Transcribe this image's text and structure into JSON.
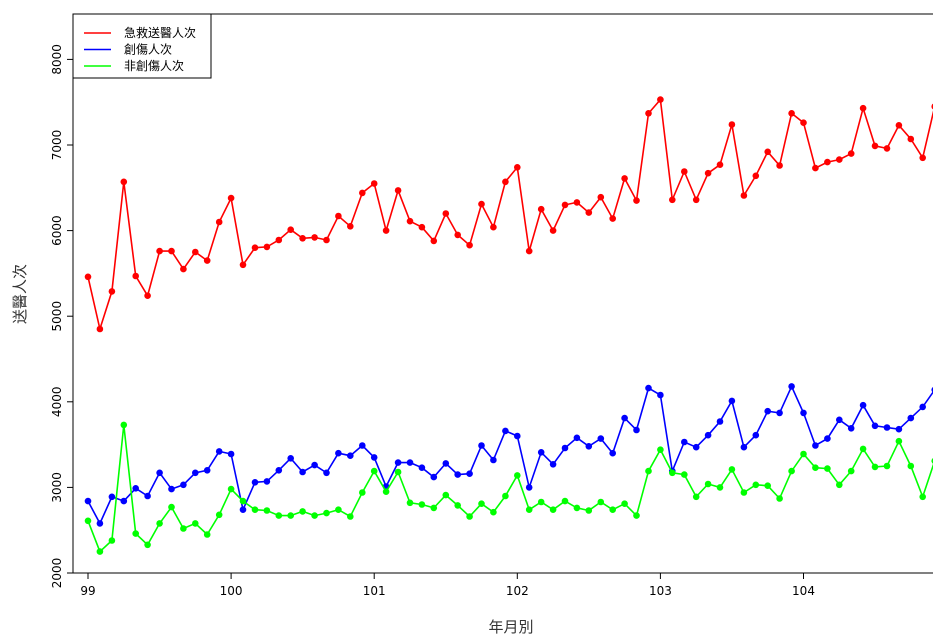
{
  "chart_data": {
    "type": "line",
    "xlabel": "年月別",
    "ylabel": "送醫人次",
    "xlim": [
      99,
      104.91
    ],
    "ylim": [
      2000,
      8500
    ],
    "x_ticks": [
      99,
      100,
      101,
      102,
      103,
      104
    ],
    "x_tick_labels": [
      "99",
      "100",
      "101",
      "102",
      "103",
      "104"
    ],
    "y_ticks": [
      2000,
      3000,
      4000,
      5000,
      6000,
      7000,
      8000
    ],
    "y_tick_labels": [
      "2000",
      "3000",
      "4000",
      "5000",
      "6000",
      "7000",
      "8000"
    ],
    "legend_position": "top-left",
    "grid": false,
    "months_per_year": 12,
    "series": [
      {
        "name": "急救送醫人次",
        "color": "#ff0000",
        "values": [
          5460,
          4850,
          5290,
          6570,
          5470,
          5240,
          5760,
          5760,
          5550,
          5750,
          5650,
          6100,
          6380,
          5600,
          5800,
          5810,
          5890,
          6010,
          5910,
          5920,
          5890,
          6170,
          6050,
          6440,
          6550,
          6000,
          6470,
          6110,
          6040,
          5880,
          6200,
          5950,
          5830,
          6310,
          6040,
          6570,
          6740,
          5760,
          6250,
          6000,
          6300,
          6330,
          6210,
          6390,
          6140,
          6610,
          6350,
          7370,
          7530,
          6360,
          6690,
          6360,
          6670,
          6770,
          7240,
          6410,
          6640,
          6920,
          6760,
          7370,
          7260,
          6730,
          6800,
          6830,
          6900,
          7430,
          6990,
          6960,
          7230,
          7070,
          6850,
          7450
        ]
      },
      {
        "name": "創傷人次",
        "color": "#0000ff",
        "values": [
          2840,
          2580,
          2890,
          2840,
          2990,
          2900,
          3170,
          2980,
          3030,
          3170,
          3200,
          3420,
          3390,
          2740,
          3060,
          3070,
          3200,
          3340,
          3180,
          3260,
          3170,
          3400,
          3370,
          3490,
          3350,
          3010,
          3290,
          3290,
          3230,
          3120,
          3280,
          3150,
          3160,
          3490,
          3320,
          3660,
          3600,
          3000,
          3410,
          3270,
          3460,
          3580,
          3480,
          3570,
          3400,
          3810,
          3670,
          4160,
          4080,
          3190,
          3530,
          3470,
          3610,
          3770,
          4010,
          3470,
          3610,
          3890,
          3870,
          4180,
          3870,
          3490,
          3570,
          3790,
          3690,
          3960,
          3720,
          3700,
          3680,
          3810,
          3940,
          4140
        ]
      },
      {
        "name": "非創傷人次",
        "color": "#00ff00",
        "values": [
          2610,
          2250,
          2380,
          3730,
          2460,
          2330,
          2580,
          2770,
          2520,
          2580,
          2450,
          2680,
          2980,
          2840,
          2740,
          2730,
          2670,
          2670,
          2720,
          2670,
          2700,
          2740,
          2660,
          2940,
          3190,
          2950,
          3180,
          2820,
          2800,
          2760,
          2910,
          2790,
          2660,
          2810,
          2710,
          2900,
          3140,
          2740,
          2830,
          2740,
          2840,
          2760,
          2730,
          2830,
          2740,
          2810,
          2670,
          3190,
          3440,
          3170,
          3150,
          2890,
          3040,
          3000,
          3210,
          2940,
          3030,
          3020,
          2870,
          3190,
          3390,
          3230,
          3220,
          3030,
          3190,
          3450,
          3240,
          3250,
          3540,
          3250,
          2890,
          3310
        ]
      }
    ]
  }
}
